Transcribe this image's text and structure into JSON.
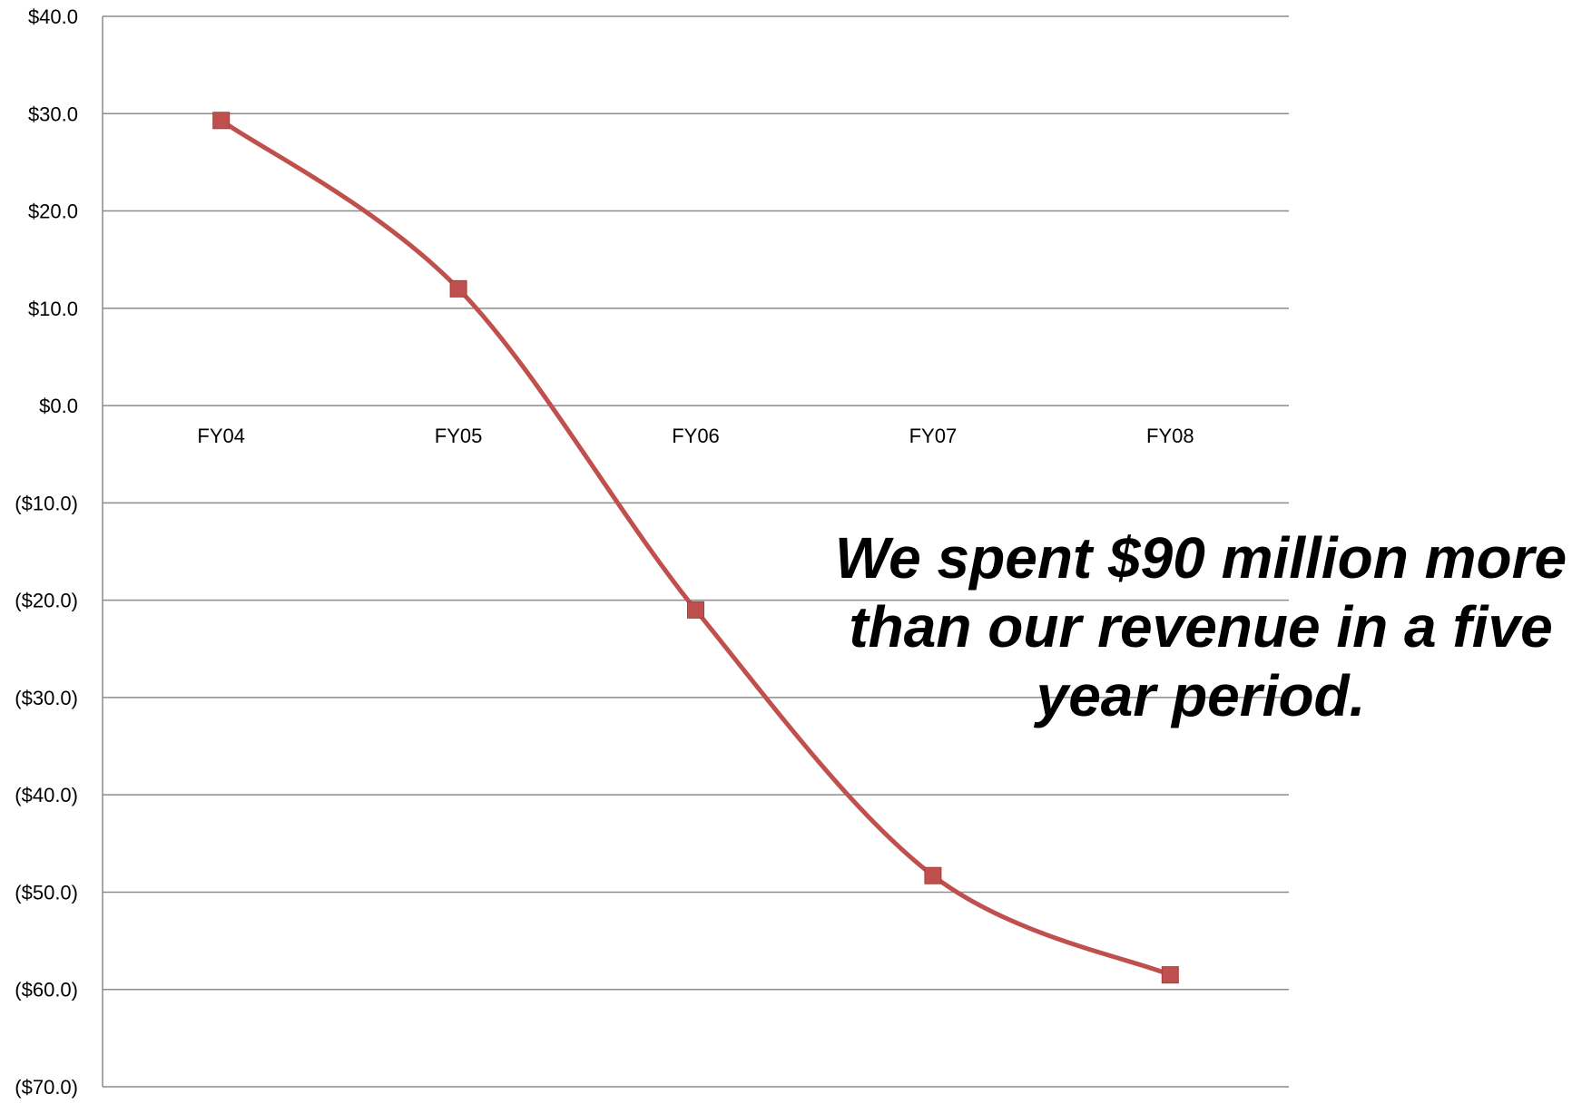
{
  "chart_data": {
    "type": "line",
    "title": "",
    "xlabel": "",
    "ylabel": "",
    "categories": [
      "FY04",
      "FY05",
      "FY06",
      "FY07",
      "FY08"
    ],
    "series": [
      {
        "values": [
          29.3,
          12.0,
          -21.0,
          -48.3,
          -58.5
        ]
      }
    ],
    "ylim": [
      -70,
      40
    ],
    "yticks": [
      40,
      30,
      20,
      10,
      0,
      -10,
      -20,
      -30,
      -40,
      -50,
      -60,
      -70
    ],
    "ytick_labels": [
      "$40.0",
      "$30.0",
      "$20.0",
      "$10.0",
      "$0.0",
      "($10.0)",
      "($20.0)",
      "($30.0)",
      "($40.0)",
      "($50.0)",
      "($60.0)",
      "($70.0)"
    ],
    "grid": true,
    "line_color": "#c0504d",
    "marker": "square",
    "smooth": true,
    "annotation": "We spent $90 million more than our revenue in a five year period."
  }
}
